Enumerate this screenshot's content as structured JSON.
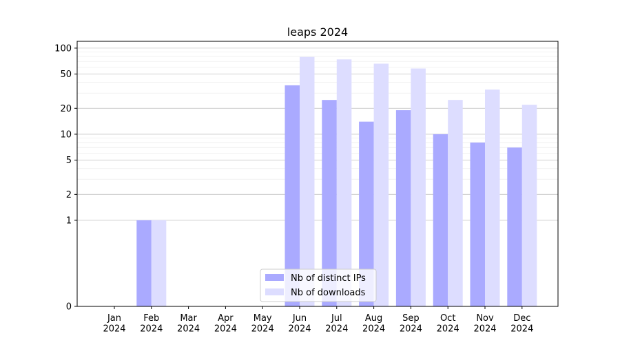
{
  "chart_data": {
    "type": "bar",
    "title": "leaps 2024",
    "xlabel": "",
    "ylabel": "",
    "y_scale": "symlog",
    "ylim": [
      0,
      120
    ],
    "y_ticks": [
      0,
      1,
      2,
      5,
      10,
      20,
      50,
      100
    ],
    "y_tick_labels": [
      "0",
      "1",
      "2",
      "5",
      "10",
      "20",
      "50",
      "100"
    ],
    "categories": [
      "Jan\n2024",
      "Feb\n2024",
      "Mar\n2024",
      "Apr\n2024",
      "May\n2024",
      "Jun\n2024",
      "Jul\n2024",
      "Aug\n2024",
      "Sep\n2024",
      "Oct\n2024",
      "Nov\n2024",
      "Dec\n2024"
    ],
    "category_lines": [
      [
        "Jan",
        "2024"
      ],
      [
        "Feb",
        "2024"
      ],
      [
        "Mar",
        "2024"
      ],
      [
        "Apr",
        "2024"
      ],
      [
        "May",
        "2024"
      ],
      [
        "Jun",
        "2024"
      ],
      [
        "Jul",
        "2024"
      ],
      [
        "Aug",
        "2024"
      ],
      [
        "Sep",
        "2024"
      ],
      [
        "Oct",
        "2024"
      ],
      [
        "Nov",
        "2024"
      ],
      [
        "Dec",
        "2024"
      ]
    ],
    "series": [
      {
        "name": "Nb of distinct IPs",
        "color": "#aaaaff",
        "values": [
          0,
          1,
          0,
          0,
          0,
          37,
          25,
          14,
          19,
          10,
          8,
          7
        ]
      },
      {
        "name": "Nb of downloads",
        "color": "#ddddff",
        "values": [
          0,
          1,
          0,
          0,
          0,
          79,
          74,
          66,
          58,
          25,
          33,
          22
        ]
      }
    ],
    "grid": true,
    "legend_position": "lower-center"
  }
}
